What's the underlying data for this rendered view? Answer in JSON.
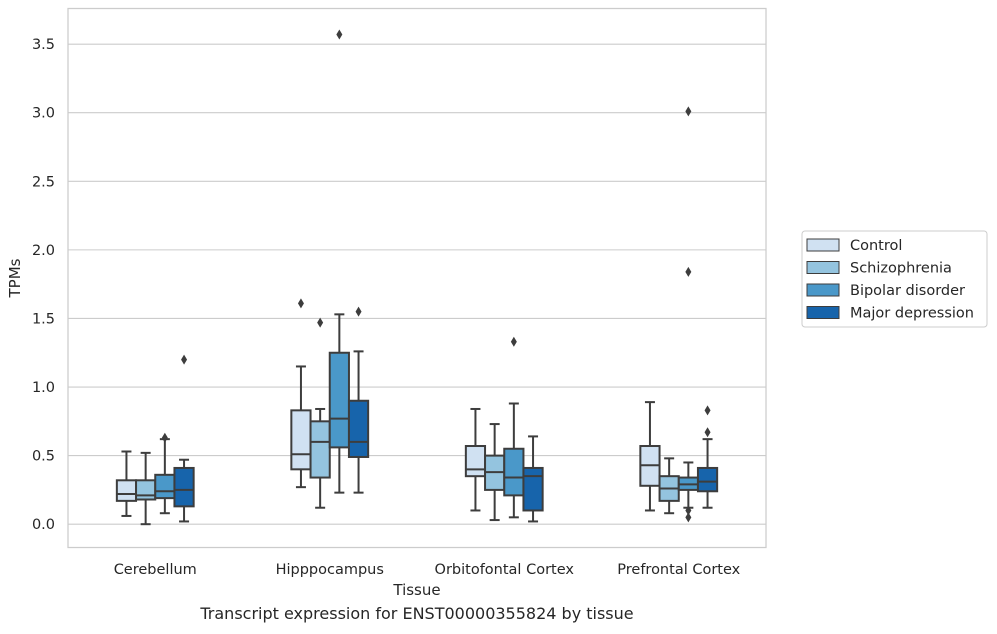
{
  "chart_data": {
    "type": "box",
    "title": "",
    "xlabel": "Tissue",
    "ylabel": "TPMs",
    "ylim": [
      -0.17,
      3.76
    ],
    "yticks": [
      0.0,
      0.5,
      1.0,
      1.5,
      2.0,
      2.5,
      3.0,
      3.5
    ],
    "ytick_labels": [
      "0.0",
      "0.5",
      "1.0",
      "1.5",
      "2.0",
      "2.5",
      "3.0",
      "3.5"
    ],
    "grid": "horizontal",
    "legend_position": "right",
    "categories": [
      "Cerebellum",
      "Hipppocampus",
      "Orbitofontal Cortex",
      "Prefrontal Cortex"
    ],
    "series": [
      {
        "name": "Control",
        "color": "#d0e1f2",
        "boxes": [
          {
            "whislo": 0.06,
            "q1": 0.17,
            "med": 0.22,
            "q3": 0.32,
            "whishi": 0.53,
            "fliers": []
          },
          {
            "whislo": 0.27,
            "q1": 0.4,
            "med": 0.51,
            "q3": 0.83,
            "whishi": 1.15,
            "fliers": [
              1.61
            ]
          },
          {
            "whislo": 0.1,
            "q1": 0.35,
            "med": 0.4,
            "q3": 0.57,
            "whishi": 0.84,
            "fliers": []
          },
          {
            "whislo": 0.1,
            "q1": 0.28,
            "med": 0.43,
            "q3": 0.57,
            "whishi": 0.89,
            "fliers": []
          }
        ]
      },
      {
        "name": "Schizophrenia",
        "color": "#94c4df",
        "boxes": [
          {
            "whislo": 0.0,
            "q1": 0.18,
            "med": 0.21,
            "q3": 0.32,
            "whishi": 0.52,
            "fliers": []
          },
          {
            "whislo": 0.12,
            "q1": 0.34,
            "med": 0.6,
            "q3": 0.75,
            "whishi": 0.84,
            "fliers": [
              1.47
            ]
          },
          {
            "whislo": 0.03,
            "q1": 0.25,
            "med": 0.38,
            "q3": 0.5,
            "whishi": 0.73,
            "fliers": []
          },
          {
            "whislo": 0.08,
            "q1": 0.17,
            "med": 0.26,
            "q3": 0.35,
            "whishi": 0.48,
            "fliers": []
          }
        ]
      },
      {
        "name": "Bipolar disorder",
        "color": "#4a98c9",
        "boxes": [
          {
            "whislo": 0.08,
            "q1": 0.19,
            "med": 0.24,
            "q3": 0.36,
            "whishi": 0.62,
            "fliers": [
              0.63
            ]
          },
          {
            "whislo": 0.23,
            "q1": 0.56,
            "med": 0.77,
            "q3": 1.25,
            "whishi": 1.53,
            "fliers": [
              3.57
            ]
          },
          {
            "whislo": 0.05,
            "q1": 0.21,
            "med": 0.34,
            "q3": 0.55,
            "whishi": 0.88,
            "fliers": [
              1.33
            ]
          },
          {
            "whislo": 0.12,
            "q1": 0.25,
            "med": 0.29,
            "q3": 0.34,
            "whishi": 0.45,
            "fliers": [
              0.1,
              0.05,
              1.84,
              3.01
            ]
          }
        ]
      },
      {
        "name": "Major depression",
        "color": "#1764ab",
        "boxes": [
          {
            "whislo": 0.02,
            "q1": 0.13,
            "med": 0.25,
            "q3": 0.41,
            "whishi": 0.47,
            "fliers": [
              1.2
            ]
          },
          {
            "whislo": 0.23,
            "q1": 0.49,
            "med": 0.6,
            "q3": 0.9,
            "whishi": 1.26,
            "fliers": [
              1.55
            ]
          },
          {
            "whislo": 0.02,
            "q1": 0.1,
            "med": 0.35,
            "q3": 0.41,
            "whishi": 0.64,
            "fliers": []
          },
          {
            "whislo": 0.12,
            "q1": 0.24,
            "med": 0.31,
            "q3": 0.41,
            "whishi": 0.62,
            "fliers": [
              0.67,
              0.83
            ]
          }
        ]
      }
    ]
  },
  "caption": "Transcript expression for ENST00000355824 by tissue"
}
